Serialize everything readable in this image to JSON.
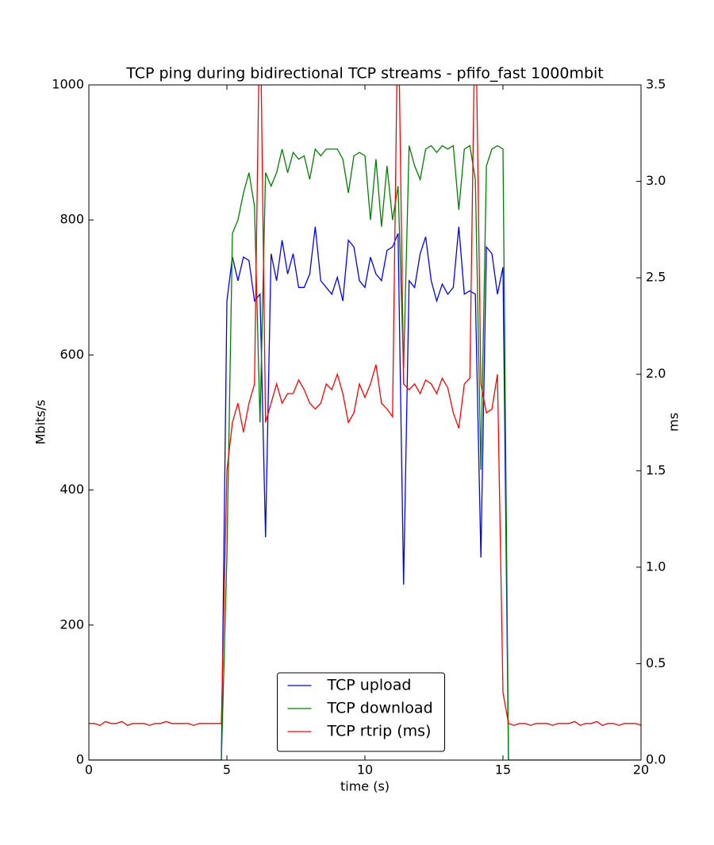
{
  "chart_data": {
    "type": "line",
    "title": "TCP ping during bidirectional TCP streams - pfifo_fast 1000mbit",
    "xlabel": "time (s)",
    "ylabel": "Mbits/s",
    "y2label": "ms",
    "xlim": [
      0,
      20
    ],
    "xticks": [
      0,
      5,
      10,
      15,
      20
    ],
    "ylim": [
      0,
      1000
    ],
    "yticks": [
      0,
      200,
      400,
      600,
      800,
      1000
    ],
    "y2lim": [
      0,
      3.5
    ],
    "y2ticks": [
      {
        "value": 0,
        "label": "0.0"
      },
      0.5,
      {
        "value": 1,
        "label": "1.0"
      },
      1.5,
      {
        "value": 2,
        "label": "2.0"
      },
      2.5,
      {
        "value": 3,
        "label": "3.0"
      },
      3.5
    ],
    "legend": "lower center",
    "grid": false,
    "x": [
      0,
      0.2,
      0.4,
      0.6,
      0.8,
      1,
      1.2,
      1.4,
      1.6,
      1.8,
      2,
      2.2,
      2.4,
      2.6,
      2.8,
      3,
      3.2,
      3.4,
      3.6,
      3.8,
      4,
      4.2,
      4.4,
      4.6,
      4.8,
      5,
      5.2,
      5.4,
      5.6,
      5.8,
      6,
      6.2,
      6.4,
      6.6,
      6.8,
      7,
      7.2,
      7.4,
      7.6,
      7.8,
      8,
      8.2,
      8.4,
      8.6,
      8.8,
      9,
      9.2,
      9.4,
      9.6,
      9.8,
      10,
      10.2,
      10.4,
      10.6,
      10.8,
      11,
      11.2,
      11.4,
      11.6,
      11.8,
      12,
      12.2,
      12.4,
      12.6,
      12.8,
      13,
      13.2,
      13.4,
      13.6,
      13.8,
      14,
      14.2,
      14.4,
      14.6,
      14.8,
      15,
      15.2,
      15.4,
      15.6,
      15.8,
      16,
      16.2,
      16.4,
      16.6,
      16.8,
      17,
      17.2,
      17.4,
      17.6,
      17.8,
      18,
      18.2,
      18.4,
      18.6,
      18.8,
      19,
      19.2,
      19.4,
      19.6,
      19.8,
      20
    ],
    "series": [
      {
        "name": "TCP upload",
        "color": "#0000ff",
        "values": [
          0,
          0,
          0,
          0,
          0,
          0,
          0,
          0,
          0,
          0,
          0,
          0,
          0,
          0,
          0,
          0,
          0,
          0,
          0,
          0,
          0,
          0,
          0,
          0,
          0,
          680,
          745,
          710,
          745,
          740,
          680,
          690,
          330,
          750,
          710,
          770,
          720,
          750,
          700,
          700,
          720,
          790,
          710,
          700,
          690,
          715,
          680,
          770,
          760,
          710,
          700,
          745,
          720,
          710,
          755,
          760,
          780,
          260,
          710,
          700,
          750,
          775,
          710,
          680,
          705,
          690,
          700,
          790,
          690,
          695,
          690,
          300,
          760,
          750,
          690,
          730,
          0,
          0,
          0,
          0,
          0,
          0,
          0,
          0,
          0,
          0,
          0,
          0,
          0,
          0,
          0,
          0,
          0,
          0,
          0,
          0,
          0,
          0,
          0,
          0,
          0
        ]
      },
      {
        "name": "TCP download",
        "color": "#008000",
        "values": [
          0,
          0,
          0,
          0,
          0,
          0,
          0,
          0,
          0,
          0,
          0,
          0,
          0,
          0,
          0,
          0,
          0,
          0,
          0,
          0,
          0,
          0,
          0,
          0,
          0,
          300,
          780,
          800,
          840,
          870,
          820,
          500,
          870,
          850,
          870,
          905,
          870,
          900,
          890,
          895,
          860,
          905,
          895,
          905,
          905,
          905,
          890,
          840,
          895,
          900,
          895,
          800,
          890,
          790,
          880,
          800,
          850,
          580,
          910,
          880,
          860,
          905,
          910,
          900,
          910,
          905,
          910,
          815,
          905,
          910,
          860,
          430,
          880,
          905,
          910,
          905,
          0,
          0,
          0,
          0,
          0,
          0,
          0,
          0,
          0,
          0,
          0,
          0,
          0,
          0,
          0,
          0,
          0,
          0,
          0,
          0,
          0,
          0,
          0,
          0,
          0
        ]
      },
      {
        "name": "TCP rtrip (ms)",
        "color": "#ff0000",
        "axis": "y2",
        "values": [
          0.19,
          0.19,
          0.18,
          0.2,
          0.19,
          0.19,
          0.2,
          0.18,
          0.19,
          0.19,
          0.19,
          0.18,
          0.19,
          0.19,
          0.2,
          0.19,
          0.19,
          0.19,
          0.19,
          0.18,
          0.19,
          0.19,
          0.19,
          0.19,
          0.19,
          1.5,
          1.75,
          1.85,
          1.7,
          1.85,
          1.95,
          4.0,
          1.75,
          1.85,
          1.95,
          1.85,
          1.9,
          1.9,
          1.97,
          1.92,
          1.85,
          1.82,
          1.85,
          1.95,
          1.92,
          2.0,
          1.9,
          1.75,
          1.8,
          1.95,
          1.88,
          1.95,
          2.05,
          1.85,
          1.82,
          1.78,
          4.0,
          1.95,
          1.92,
          1.95,
          1.9,
          1.97,
          1.95,
          1.9,
          1.98,
          1.93,
          1.8,
          1.72,
          1.95,
          1.98,
          4.0,
          1.95,
          1.8,
          1.82,
          2.0,
          0.35,
          0.19,
          0.18,
          0.19,
          0.19,
          0.18,
          0.19,
          0.19,
          0.19,
          0.18,
          0.19,
          0.19,
          0.19,
          0.2,
          0.18,
          0.19,
          0.19,
          0.2,
          0.18,
          0.19,
          0.19,
          0.18,
          0.19,
          0.19,
          0.19,
          0.18
        ]
      }
    ]
  }
}
